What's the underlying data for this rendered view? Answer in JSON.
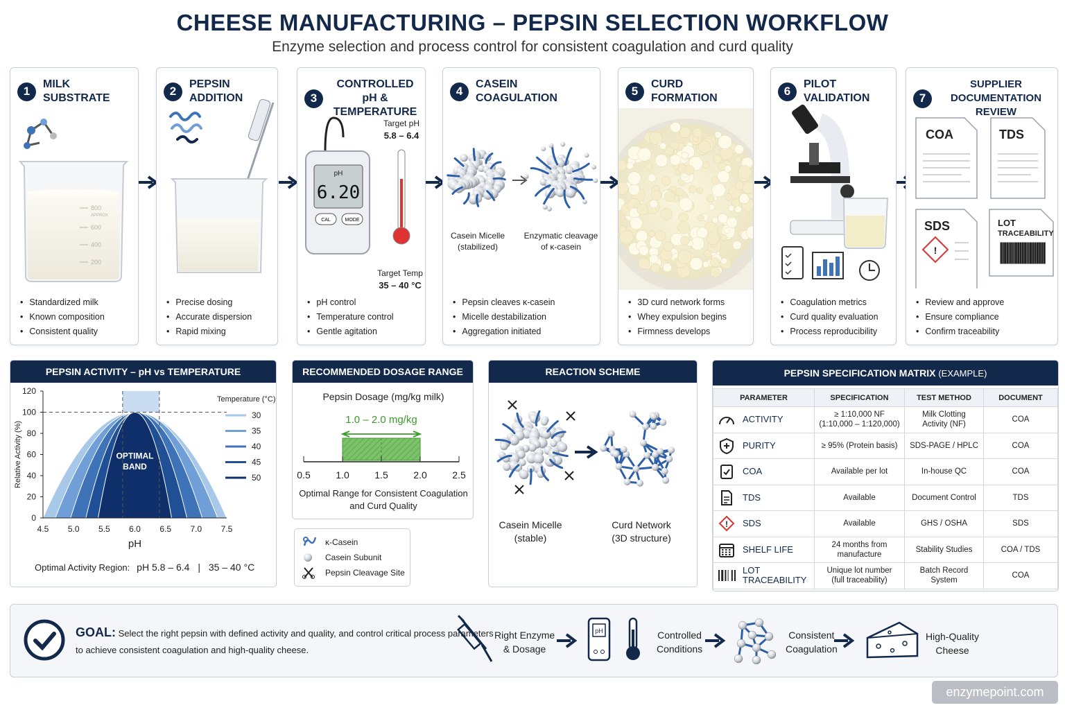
{
  "title": "CHEESE MANUFACTURING – PEPSIN SELECTION WORKFLOW",
  "subtitle": "Enzyme selection and process control for consistent coagulation and curd quality",
  "steps": [
    {
      "num": "1",
      "title": "MILK SUBSTRATE",
      "bullets": [
        "Standardized milk",
        "Known composition",
        "Consistent quality"
      ]
    },
    {
      "num": "2",
      "title": "PEPSIN ADDITION",
      "bullets": [
        "Precise dosing",
        "Accurate dispersion",
        "Rapid mixing"
      ]
    },
    {
      "num": "3",
      "title": "CONTROLLED pH & TEMPERATURE",
      "bullets": [
        "pH control",
        "Temperature control",
        "Gentle agitation"
      ]
    },
    {
      "num": "4",
      "title": "CASEIN COAGULATION",
      "bullets": [
        "Pepsin cleaves κ-casein",
        "Micelle destabilization",
        "Aggregation initiated"
      ]
    },
    {
      "num": "5",
      "title": "CURD FORMATION",
      "bullets": [
        "3D curd network forms",
        "Whey expulsion begins",
        "Firmness develops"
      ]
    },
    {
      "num": "6",
      "title": "PILOT VALIDATION",
      "bullets": [
        "Coagulation metrics",
        "Curd quality evaluation",
        "Process reproducibility"
      ]
    },
    {
      "num": "7",
      "title": "SUPPLIER DOCUMENTATION REVIEW",
      "bullets": [
        "Review and approve",
        "Ensure compliance",
        "Confirm traceability"
      ]
    }
  ],
  "beaker_marks": [
    "800",
    "APPROX",
    "600",
    "400",
    "200"
  ],
  "meter": {
    "label": "pH",
    "reading": "6.20",
    "btn1": "CAL",
    "btn2": "MODE",
    "target_ph_label": "Target pH",
    "target_ph": "5.8 – 6.4",
    "target_temp_label": "Target Temp",
    "target_temp": "35 – 40 °C"
  },
  "micelle_labels": {
    "left": "Casein Micelle",
    "left2": "(stabilized)",
    "right": "Enzymatic cleavage",
    "right2": "of κ-casein"
  },
  "docs": {
    "coa": "COA",
    "tds": "TDS",
    "sds": "SDS",
    "lot": "LOT",
    "lot2": "TRACEABILITY"
  },
  "activity_panel": {
    "title": "PEPSIN ACTIVITY – pH vs TEMPERATURE",
    "optimal_band": [
      "OPTIMAL",
      "BAND"
    ],
    "optimal_text": "Optimal Activity Region:",
    "optimal_ph": "pH 5.8 – 6.4",
    "sep": "|",
    "optimal_temp": "35 – 40 °C"
  },
  "chart_data": {
    "type": "area",
    "xlabel": "pH",
    "ylabel": "Relative Activity (%)",
    "xlim": [
      4.5,
      7.5
    ],
    "ylim": [
      0,
      120
    ],
    "xticks": [
      "4.5",
      "5.0",
      "5.5",
      "6.0",
      "6.5",
      "7.0",
      "7.5"
    ],
    "yticks": [
      "0",
      "20",
      "40",
      "60",
      "80",
      "100",
      "120"
    ],
    "legend_title": "Temperature (°C)",
    "legend_position": "top-right",
    "highlight_x": [
      5.8,
      6.4
    ],
    "series": [
      {
        "name": "30",
        "color": "#a8c8ea",
        "peak": 100,
        "x_start": 4.5,
        "x_end": 7.5
      },
      {
        "name": "35",
        "color": "#6f9fd6",
        "peak": 100,
        "x_start": 4.7,
        "x_end": 7.35
      },
      {
        "name": "40",
        "color": "#3f73b8",
        "peak": 100,
        "x_start": 4.95,
        "x_end": 7.1
      },
      {
        "name": "45",
        "color": "#1f4f95",
        "peak": 100,
        "x_start": 5.2,
        "x_end": 6.85
      },
      {
        "name": "50",
        "color": "#0f2f6a",
        "peak": 100,
        "x_start": 5.4,
        "x_end": 6.6
      }
    ]
  },
  "dosage": {
    "title": "RECOMMENDED DOSAGE RANGE",
    "axis_title": "Pepsin Dosage (mg/kg milk)",
    "range_label": "1.0 – 2.0 mg/kg",
    "range": [
      1.0,
      2.0
    ],
    "xlim": [
      0.5,
      2.5
    ],
    "ticks": [
      "0.5",
      "1.0",
      "1.5",
      "2.0",
      "2.5"
    ],
    "caption1": "Optimal Range for Consistent Coagulation",
    "caption2": "and Curd Quality"
  },
  "legend": [
    {
      "icon": "kappa-casein-icon",
      "label": "κ-Casein"
    },
    {
      "icon": "casein-subunit-icon",
      "label": "Casein Subunit"
    },
    {
      "icon": "scissors-icon",
      "label": "Pepsin Cleavage Site"
    }
  ],
  "reaction": {
    "title": "REACTION SCHEME",
    "left1": "Casein Micelle",
    "left2": "(stable)",
    "right1": "Curd Network",
    "right2": "(3D structure)"
  },
  "spec": {
    "title": "PEPSIN SPECIFICATION MATRIX",
    "title_suffix": "(EXAMPLE)",
    "headers": [
      "PARAMETER",
      "SPECIFICATION",
      "TEST METHOD",
      "DOCUMENT"
    ],
    "rows": [
      {
        "icon": "gauge-icon",
        "parameter": "ACTIVITY",
        "spec": "≥ 1:10,000  NF",
        "spec2": "(1:10,000 – 1:120,000)",
        "method": "Milk Clotting",
        "method2": "Activity (NF)",
        "doc": "COA"
      },
      {
        "icon": "shield-icon",
        "parameter": "PURITY",
        "spec": "≥ 95% (Protein basis)",
        "spec2": "",
        "method": "SDS-PAGE / HPLC",
        "method2": "",
        "doc": "COA"
      },
      {
        "icon": "clipboard-check-icon",
        "parameter": "COA",
        "spec": "Available per lot",
        "spec2": "",
        "method": "In-house QC",
        "method2": "",
        "doc": "COA"
      },
      {
        "icon": "document-icon",
        "parameter": "TDS",
        "spec": "Available",
        "spec2": "",
        "method": "Document Control",
        "method2": "",
        "doc": "TDS"
      },
      {
        "icon": "hazard-icon",
        "parameter": "SDS",
        "spec": "Available",
        "spec2": "",
        "method": "GHS / OSHA",
        "method2": "",
        "doc": "SDS"
      },
      {
        "icon": "calendar-icon",
        "parameter": "SHELF LIFE",
        "spec": "24 months from",
        "spec2": "manufacture",
        "method": "Stability Studies",
        "method2": "",
        "doc": "COA / TDS"
      },
      {
        "icon": "barcode-icon",
        "parameter": "LOT TRACEABILITY",
        "spec": "Unique lot number",
        "spec2": "(full traceability)",
        "method": "Batch Record",
        "method2": "System",
        "doc": "COA"
      }
    ]
  },
  "goal": {
    "label": "GOAL:",
    "text1": "Select the right pepsin with defined activity and quality, and control critical process parameters",
    "text2": "to achieve consistent coagulation and high-quality cheese.",
    "flow": [
      {
        "l1": "Right Enzyme",
        "l2": "& Dosage"
      },
      {
        "l1": "Controlled",
        "l2": "Conditions"
      },
      {
        "l1": "Consistent",
        "l2": "Coagulation"
      },
      {
        "l1": "High-Quality",
        "l2": "Cheese"
      }
    ]
  },
  "footer": "enzymepoint.com"
}
